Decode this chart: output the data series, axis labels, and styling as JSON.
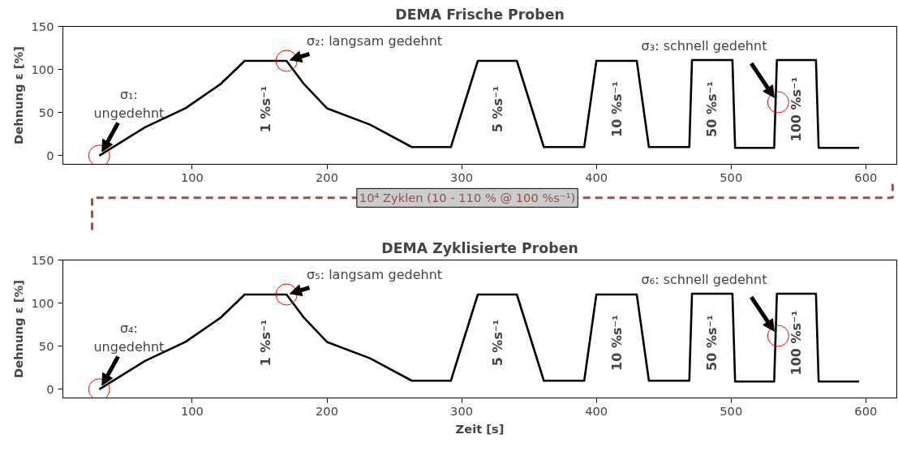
{
  "chart_data": [
    {
      "type": "line",
      "title": "DEMA Frische Proben",
      "ylabel": "Dehnung ε [%]",
      "x": [
        31,
        65,
        95,
        121,
        139,
        170,
        183,
        200,
        232,
        263,
        292,
        312,
        341,
        361,
        391,
        400,
        430,
        439,
        469,
        471,
        501,
        503,
        532,
        534,
        563,
        565,
        595
      ],
      "series": [
        {
          "color": "#000000",
          "values": [
            0,
            33,
            55,
            83,
            110,
            110,
            83,
            55,
            36,
            10,
            10,
            110,
            110,
            10,
            10,
            110,
            110,
            10,
            10,
            111,
            111,
            9,
            9,
            111,
            111,
            9,
            9
          ]
        }
      ],
      "xlim": [
        4,
        623
      ],
      "ylim": [
        -10,
        150
      ],
      "xticks": [
        100,
        200,
        300,
        400,
        500,
        600
      ],
      "yticks": [
        0,
        50,
        100,
        150
      ],
      "grid": false,
      "line_style": "solid",
      "marker": "none",
      "annotations": [
        {
          "text": "σ₁:\nungedehnt",
          "x": 31,
          "y": 0
        },
        {
          "text": "σ₂: langsam gedehnt",
          "x": 170,
          "y": 110
        },
        {
          "text": "σ₃: schnell gedehnt",
          "x": 535,
          "y": 62
        },
        "1 %s⁻¹",
        "5 %s⁻¹",
        "10 %s⁻¹",
        "50 %s⁻¹",
        "100 %s⁻¹",
        "10⁴ Zyklen (10 - 110 % @ 100 %s⁻¹)"
      ]
    },
    {
      "type": "line",
      "title": "DEMA Zyklisierte Proben",
      "ylabel": "Dehnung ε [%]",
      "xlabel": "Zeit [s]",
      "x": [
        31,
        65,
        95,
        121,
        139,
        170,
        183,
        200,
        232,
        263,
        292,
        312,
        341,
        361,
        391,
        400,
        430,
        439,
        469,
        471,
        501,
        503,
        532,
        534,
        563,
        565,
        595
      ],
      "series": [
        {
          "color": "#000000",
          "values": [
            0,
            33,
            55,
            83,
            110,
            110,
            83,
            55,
            36,
            10,
            10,
            110,
            110,
            10,
            10,
            110,
            110,
            10,
            10,
            111,
            111,
            9,
            9,
            111,
            111,
            9,
            9
          ]
        }
      ],
      "xlim": [
        4,
        623
      ],
      "ylim": [
        -10,
        150
      ],
      "xticks": [
        100,
        200,
        300,
        400,
        500,
        600
      ],
      "yticks": [
        0,
        50,
        100,
        150
      ],
      "grid": false,
      "line_style": "solid",
      "marker": "none",
      "annotations": [
        {
          "text": "σ₄:\nungedehnt",
          "x": 31,
          "y": 0
        },
        {
          "text": "σ₅: langsam gedehnt",
          "x": 170,
          "y": 110
        },
        {
          "text": "σ₆: schnell gedehnt",
          "x": 535,
          "y": 62
        },
        "1 %s⁻¹",
        "5 %s⁻¹",
        "10 %s⁻¹",
        "50 %s⁻¹",
        "100 %s⁻¹"
      ]
    }
  ]
}
